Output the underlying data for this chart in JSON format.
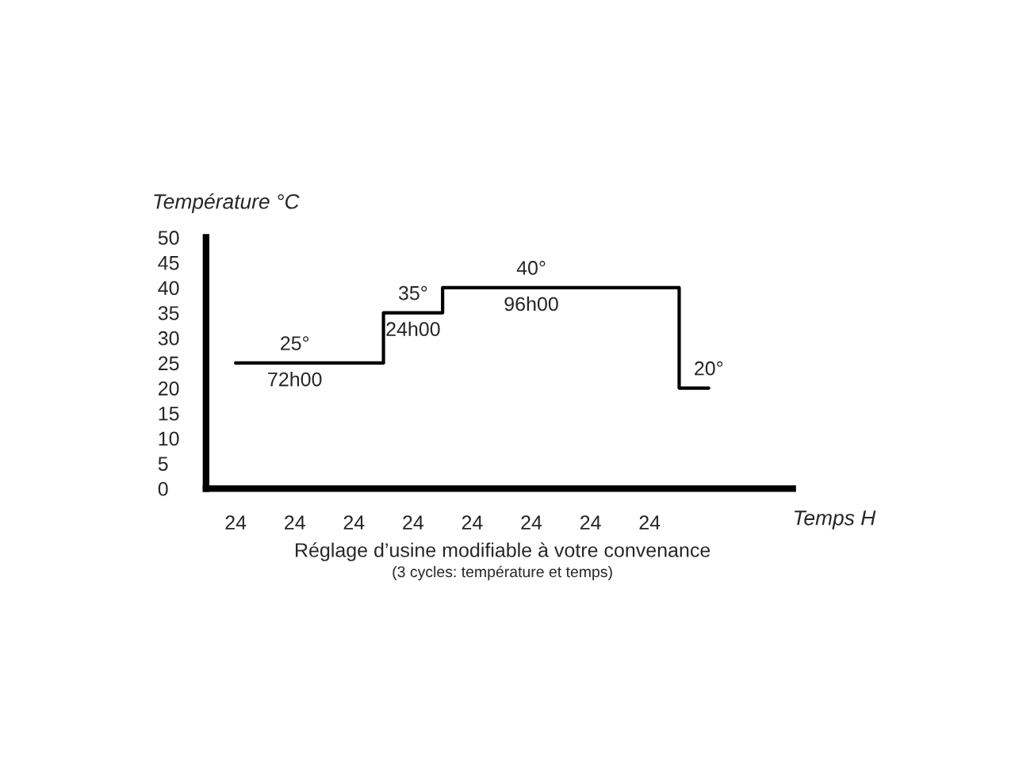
{
  "chart_data": {
    "type": "step",
    "ylabel": "Température °C",
    "xlabel": "Temps H",
    "categories": [
      "24",
      "24",
      "24",
      "24",
      "24",
      "24",
      "24",
      "24",
      null
    ],
    "series": [
      {
        "color": "#000000",
        "values": [
          25,
          25,
          25,
          35,
          40,
          40,
          40,
          40,
          20
        ],
        "value_labels": [
          null,
          "25°",
          null,
          "35°",
          null,
          "40°",
          null,
          null,
          "20°"
        ]
      }
    ],
    "ylim": [
      0,
      50
    ],
    "yticks": [
      0,
      5,
      10,
      15,
      20,
      25,
      30,
      35,
      40,
      45,
      50
    ],
    "annotations": [
      {
        "text": "72h00",
        "y": 25
      },
      {
        "text": "24h00",
        "y": 35
      },
      {
        "text": "96h00",
        "y": 40
      },
      "Réglage d’usine modifiable à votre convenance",
      "(3 cycles: température et temps)"
    ]
  }
}
